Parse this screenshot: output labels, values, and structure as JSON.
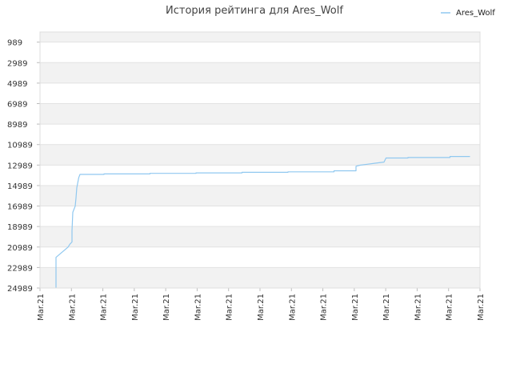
{
  "chart_data": {
    "type": "line",
    "title": "История рейтинга для Ares_Wolf",
    "legend": {
      "position": "top-right"
    },
    "y_axis": {
      "inverted": true,
      "range": [
        0,
        24989
      ],
      "ticks": [
        "989",
        "2989",
        "4989",
        "6989",
        "8989",
        "10989",
        "12989",
        "14989",
        "16989",
        "18989",
        "20989",
        "22989",
        "24989"
      ],
      "band_colors": [
        "#f2f2f2",
        "#ffffff"
      ],
      "grid": true
    },
    "x_axis": {
      "ticks": [
        "Mar.21",
        "Mar.21",
        "Mar.21",
        "Mar.21",
        "Mar.21",
        "Mar.21",
        "Mar.21",
        "Mar.21",
        "Mar.21",
        "Mar.21",
        "Mar.21",
        "Mar.21",
        "Mar.21",
        "Mar.21",
        "Mar.21"
      ]
    },
    "series": [
      {
        "name": "Ares_Wolf",
        "color": "#90c8f0",
        "points": [
          [
            0.04,
            24989
          ],
          [
            0.04,
            22000
          ],
          [
            0.07,
            21000
          ],
          [
            0.075,
            20700
          ],
          [
            0.08,
            20500
          ],
          [
            0.08,
            19400
          ],
          [
            0.082,
            17600
          ],
          [
            0.088,
            17000
          ],
          [
            0.09,
            16200
          ],
          [
            0.092,
            15200
          ],
          [
            0.097,
            14200
          ],
          [
            0.1,
            13900
          ],
          [
            0.16,
            13900
          ],
          [
            0.16,
            13850
          ],
          [
            0.275,
            13850
          ],
          [
            0.275,
            13800
          ],
          [
            0.39,
            13800
          ],
          [
            0.39,
            13750
          ],
          [
            0.505,
            13750
          ],
          [
            0.505,
            13700
          ],
          [
            0.62,
            13700
          ],
          [
            0.62,
            13650
          ],
          [
            0.735,
            13650
          ],
          [
            0.735,
            13550
          ],
          [
            0.79,
            13550
          ],
          [
            0.79,
            13100
          ],
          [
            0.8,
            13000
          ],
          [
            0.82,
            12900
          ],
          [
            0.84,
            12800
          ],
          [
            0.86,
            12700
          ],
          [
            0.865,
            12300
          ],
          [
            0.92,
            12300
          ],
          [
            0.92,
            12250
          ],
          [
            1.025,
            12250
          ],
          [
            1.025,
            12150
          ],
          [
            1.075,
            12150
          ]
        ]
      }
    ]
  }
}
